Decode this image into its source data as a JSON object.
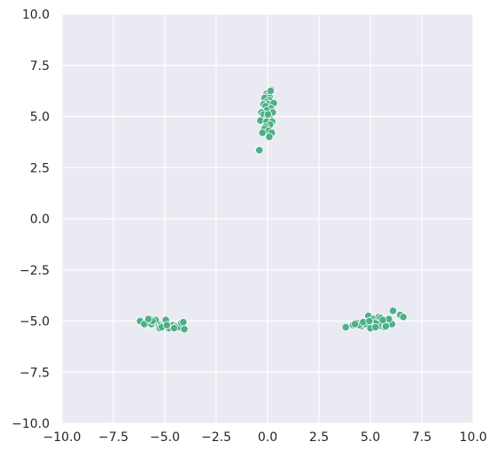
{
  "chart_data": {
    "type": "scatter",
    "title": "",
    "xlabel": "",
    "ylabel": "",
    "xlim": [
      -10,
      10
    ],
    "ylim": [
      -10,
      10
    ],
    "grid": true,
    "style": {
      "background": "#eaeaf2",
      "grid_color": "#ffffff",
      "point_color": "#4daf88",
      "point_edge": "#ffffff"
    },
    "x_ticks": [
      "−10.0",
      "−7.5",
      "−5.0",
      "−2.5",
      "0.0",
      "2.5",
      "5.0",
      "7.5",
      "10.0"
    ],
    "x_tick_values": [
      -10,
      -7.5,
      -5,
      -2.5,
      0,
      2.5,
      5,
      7.5,
      10
    ],
    "y_ticks": [
      "10.0",
      "7.5",
      "5.0",
      "2.5",
      "0.0",
      "−2.5",
      "−5.0",
      "−7.5",
      "−10.0"
    ],
    "y_tick_values": [
      10,
      7.5,
      5,
      2.5,
      0,
      -2.5,
      -5,
      -7.5,
      -10
    ],
    "series": [
      {
        "x": [
          0.18,
          0.12,
          -0.05,
          0.0,
          0.1,
          -0.15,
          0.08,
          -0.05,
          -0.2,
          0.05,
          0.3,
          -0.1,
          0.15,
          -0.05,
          -0.3,
          0.25,
          -0.2,
          0.0,
          0.1,
          -0.35,
          -0.05,
          0.22,
          0.12,
          -0.1,
          -0.15,
          0.05,
          -0.25,
          0.2,
          0.08,
          -0.4,
          0.02,
          0.15,
          -6.2,
          -5.9,
          -5.7,
          -5.5,
          -5.35,
          -5.2,
          -5.05,
          -4.95,
          -4.85,
          -4.7,
          -4.6,
          -4.45,
          -4.35,
          -4.2,
          -4.05,
          -5.65,
          -5.45,
          -5.25,
          -5.0,
          -4.8,
          -6.0,
          -5.6,
          -5.15,
          -4.9,
          -4.55,
          -4.1,
          -5.8,
          3.8,
          4.15,
          4.35,
          4.55,
          4.75,
          4.9,
          5.05,
          5.15,
          5.3,
          5.4,
          5.55,
          5.7,
          5.85,
          5.95,
          6.05,
          6.45,
          6.6,
          5.0,
          4.45,
          4.65,
          5.25,
          5.5,
          5.75,
          5.9,
          6.1,
          4.25,
          5.6,
          4.95
        ],
        "y": [
          6.3,
          6.2,
          6.1,
          6.0,
          5.95,
          5.9,
          5.8,
          5.7,
          5.6,
          5.6,
          5.65,
          5.5,
          5.4,
          5.3,
          5.2,
          5.2,
          5.1,
          5.0,
          4.9,
          4.8,
          4.75,
          4.75,
          4.6,
          4.5,
          4.4,
          4.3,
          4.2,
          4.2,
          4.0,
          3.35,
          5.1,
          6.25,
          -5.0,
          -5.05,
          -4.9,
          -5.0,
          -5.1,
          -5.2,
          -5.2,
          -4.95,
          -5.25,
          -5.3,
          -5.2,
          -5.25,
          -5.3,
          -5.1,
          -5.4,
          -5.15,
          -4.95,
          -5.35,
          -5.25,
          -5.35,
          -5.15,
          -5.0,
          -5.3,
          -5.2,
          -5.35,
          -5.05,
          -4.9,
          -5.3,
          -5.2,
          -5.1,
          -5.25,
          -5.15,
          -4.75,
          -5.3,
          -4.9,
          -5.05,
          -4.8,
          -5.25,
          -5.3,
          -4.95,
          -5.1,
          -5.15,
          -4.7,
          -4.8,
          -5.35,
          -5.2,
          -5.05,
          -5.3,
          -4.85,
          -5.25,
          -4.9,
          -4.5,
          -5.15,
          -4.95,
          -5.0
        ]
      }
    ]
  }
}
